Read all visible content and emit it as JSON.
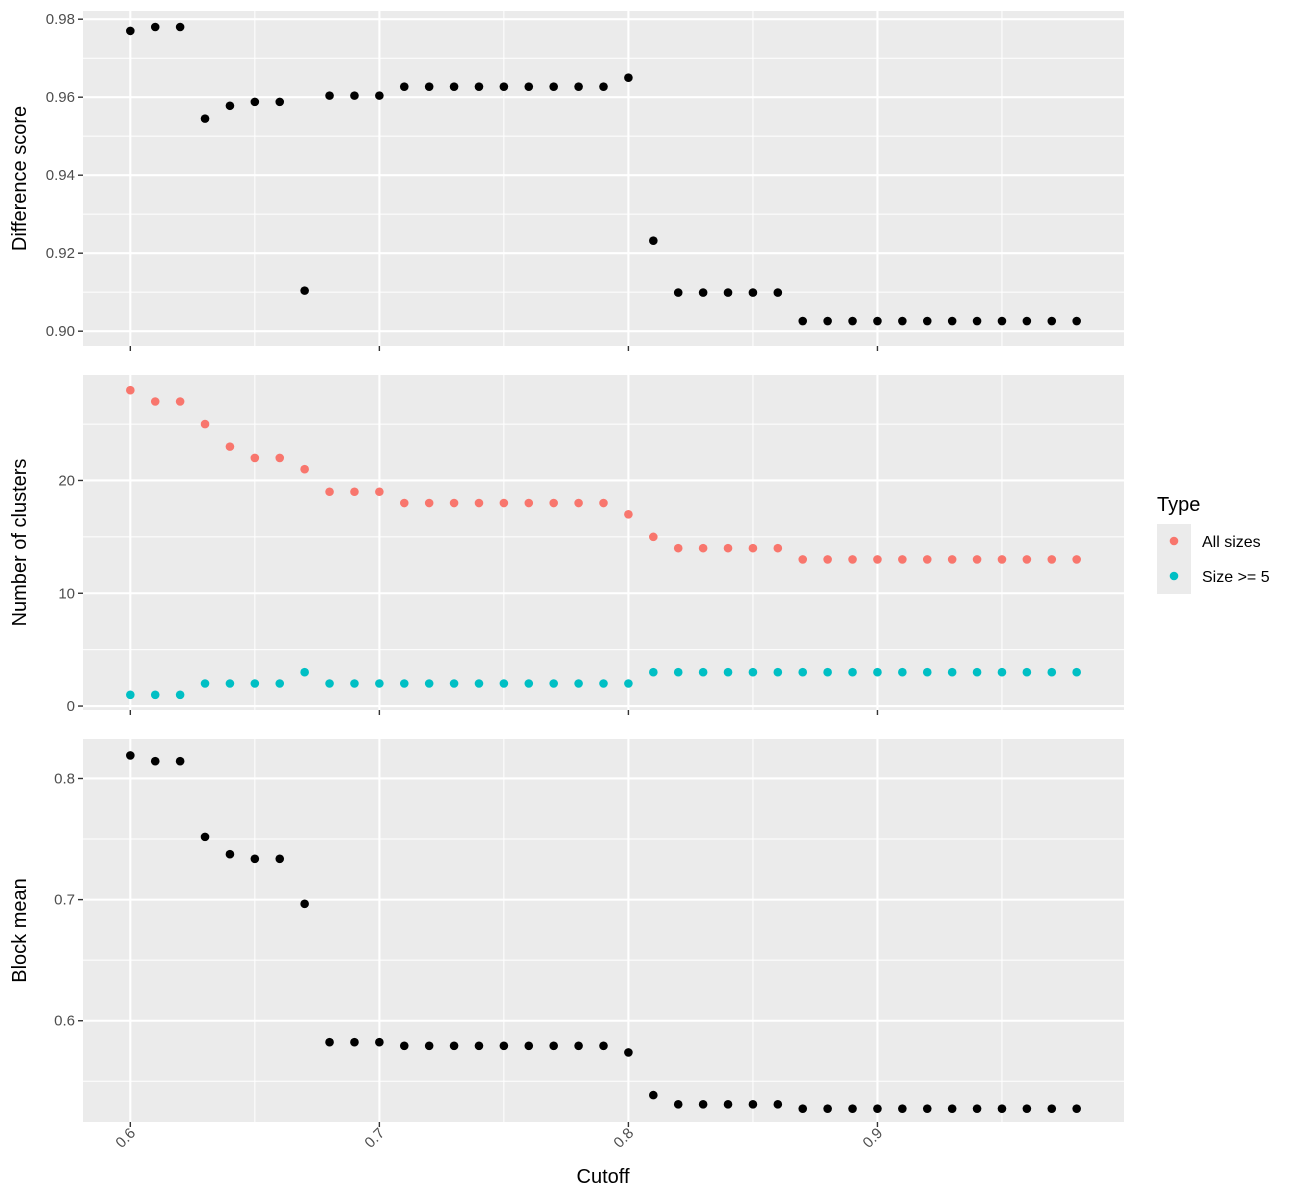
{
  "chart_data": {
    "type": "scatter",
    "xlabel": "Cutoff",
    "x": [
      0.6,
      0.61,
      0.62,
      0.63,
      0.64,
      0.65,
      0.66,
      0.67,
      0.68,
      0.69,
      0.7,
      0.71,
      0.72,
      0.73,
      0.74,
      0.75,
      0.76,
      0.77,
      0.78,
      0.79,
      0.8,
      0.81,
      0.82,
      0.83,
      0.84,
      0.85,
      0.86,
      0.87,
      0.88,
      0.89,
      0.9,
      0.91,
      0.92,
      0.93,
      0.94,
      0.95,
      0.96,
      0.97,
      0.98
    ],
    "xticks": [
      0.6,
      0.7,
      0.8,
      0.9
    ],
    "xtick_labels": [
      "0.6",
      "0.7",
      "0.8",
      "0.9"
    ],
    "xlim": [
      0.581,
      0.999
    ],
    "grid": true,
    "panels": [
      {
        "id": "difference",
        "ylabel": "Difference score",
        "ylim": [
          0.8962,
          0.9821
        ],
        "yticks": [
          0.9,
          0.92,
          0.94,
          0.96,
          0.98
        ],
        "ytick_labels": [
          "0.90",
          "0.92",
          "0.94",
          "0.96",
          "0.98"
        ],
        "series": [
          {
            "color": "#000000",
            "values": [
              0.977,
              0.978,
              0.978,
              0.9545,
              0.9578,
              0.9588,
              0.9588,
              0.9104,
              0.9604,
              0.9604,
              0.9604,
              0.9627,
              0.9627,
              0.9627,
              0.9627,
              0.9627,
              0.9627,
              0.9627,
              0.9627,
              0.9627,
              0.965,
              0.9232,
              0.9099,
              0.9099,
              0.9099,
              0.9099,
              0.9099,
              0.9026,
              0.9026,
              0.9026,
              0.9026,
              0.9026,
              0.9026,
              0.9026,
              0.9026,
              0.9026,
              0.9026,
              0.9026,
              0.9026
            ]
          }
        ]
      },
      {
        "id": "clusters",
        "ylabel": "Number of clusters",
        "ylim": [
          -0.35,
          29.35
        ],
        "yticks": [
          0,
          10,
          20
        ],
        "ytick_labels": [
          "0",
          "10",
          "20"
        ],
        "series": [
          {
            "name": "All sizes",
            "color": "#F8766D",
            "values": [
              28,
              27,
              27,
              25,
              23,
              22,
              22,
              21,
              19,
              19,
              19,
              18,
              18,
              18,
              18,
              18,
              18,
              18,
              18,
              18,
              17,
              15,
              14,
              14,
              14,
              14,
              14,
              13,
              13,
              13,
              13,
              13,
              13,
              13,
              13,
              13,
              13,
              13,
              13
            ]
          },
          {
            "name": "Size >= 5",
            "color": "#00BFC4",
            "values": [
              1,
              1,
              1,
              2,
              2,
              2,
              2,
              3,
              2,
              2,
              2,
              2,
              2,
              2,
              2,
              2,
              2,
              2,
              2,
              2,
              2,
              3,
              3,
              3,
              3,
              3,
              3,
              3,
              3,
              3,
              3,
              3,
              3,
              3,
              3,
              3,
              3,
              3,
              3
            ]
          }
        ]
      },
      {
        "id": "blockmean",
        "ylabel": "Block mean",
        "ylim": [
          0.5164,
          0.8326
        ],
        "yticks": [
          0.6,
          0.7,
          0.8
        ],
        "ytick_labels": [
          "0.6",
          "0.7",
          "0.8"
        ],
        "series": [
          {
            "color": "#000000",
            "values": [
              0.819,
              0.8143,
              0.8143,
              0.7518,
              0.7375,
              0.7337,
              0.7337,
              0.6965,
              0.5823,
              0.5823,
              0.5823,
              0.5793,
              0.5793,
              0.5793,
              0.5793,
              0.5793,
              0.5793,
              0.5793,
              0.5793,
              0.5793,
              0.5738,
              0.5386,
              0.531,
              0.531,
              0.531,
              0.531,
              0.531,
              0.5274,
              0.5274,
              0.5274,
              0.5274,
              0.5274,
              0.5274,
              0.5274,
              0.5274,
              0.5274,
              0.5274,
              0.5274,
              0.5274
            ]
          }
        ]
      }
    ],
    "legend": {
      "title": "Type",
      "placement": "right",
      "entries": [
        {
          "label": "All sizes",
          "color": "#F8766D"
        },
        {
          "label": "Size >= 5",
          "color": "#00BFC4"
        }
      ]
    }
  }
}
